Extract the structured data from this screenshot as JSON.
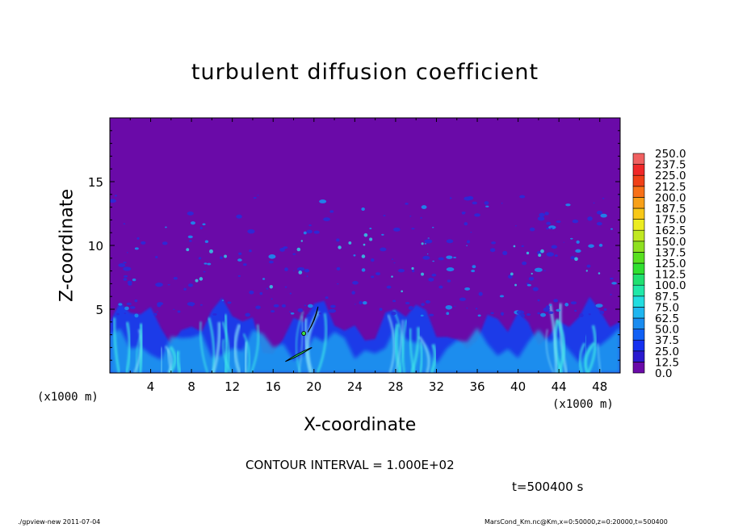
{
  "chart_data": {
    "type": "heatmap",
    "title": "turbulent diffusion coefficient",
    "xlabel": "X-coordinate",
    "ylabel": "Z-coordinate",
    "x_unit_left": "(x1000 m)",
    "x_unit_right": "(x1000 m)",
    "xlim": [
      0,
      50
    ],
    "ylim": [
      0,
      20
    ],
    "xticks": [
      "4",
      "8",
      "12",
      "16",
      "20",
      "24",
      "28",
      "32",
      "36",
      "40",
      "44",
      "48"
    ],
    "yticks": [
      "5",
      "10",
      "15"
    ],
    "colorbar": {
      "ticks": [
        "0.0",
        "12.5",
        "25.0",
        "37.5",
        "50.0",
        "62.5",
        "75.0",
        "87.5",
        "100.0",
        "112.5",
        "125.0",
        "137.5",
        "150.0",
        "162.5",
        "175.0",
        "187.5",
        "200.0",
        "212.5",
        "225.0",
        "237.5",
        "250.0"
      ],
      "colors": [
        "#6a0aa8",
        "#2a1ad0",
        "#1530f0",
        "#1060f5",
        "#1a8cf0",
        "#1fb6f0",
        "#22dde0",
        "#20e8a8",
        "#20e070",
        "#30e030",
        "#58e020",
        "#8ee020",
        "#c0e820",
        "#ecec20",
        "#f8c818",
        "#f8a018",
        "#f87018",
        "#f04018",
        "#f02828",
        "#f06060"
      ]
    },
    "background_color": "#6a0aa8",
    "contour_interval": "CONTOUR INTERVAL = 1.000E+02",
    "time": "t=500400 s"
  },
  "footer": {
    "left": "./gpview-new   2011-07-04",
    "right": "MarsCond_Km.nc@Km,x=0:50000,z=0:20000,t=500400"
  }
}
